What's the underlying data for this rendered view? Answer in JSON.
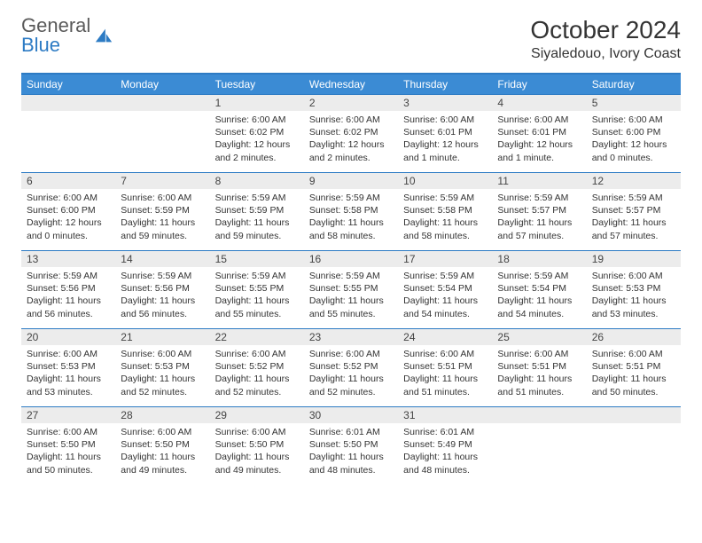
{
  "logo": {
    "part1": "General",
    "part2": "Blue"
  },
  "title": "October 2024",
  "location": "Siyaledouo, Ivory Coast",
  "colors": {
    "header_bg": "#3b8bd4",
    "header_text": "#ffffff",
    "border": "#2d7bc4",
    "daynum_bg": "#ececec",
    "text": "#333333",
    "logo_gray": "#5a5a5a",
    "logo_blue": "#2d7bc4"
  },
  "day_headers": [
    "Sunday",
    "Monday",
    "Tuesday",
    "Wednesday",
    "Thursday",
    "Friday",
    "Saturday"
  ],
  "leading_empty": 2,
  "days": [
    {
      "n": 1,
      "sr": "6:00 AM",
      "ss": "6:02 PM",
      "dl": "12 hours and 2 minutes."
    },
    {
      "n": 2,
      "sr": "6:00 AM",
      "ss": "6:02 PM",
      "dl": "12 hours and 2 minutes."
    },
    {
      "n": 3,
      "sr": "6:00 AM",
      "ss": "6:01 PM",
      "dl": "12 hours and 1 minute."
    },
    {
      "n": 4,
      "sr": "6:00 AM",
      "ss": "6:01 PM",
      "dl": "12 hours and 1 minute."
    },
    {
      "n": 5,
      "sr": "6:00 AM",
      "ss": "6:00 PM",
      "dl": "12 hours and 0 minutes."
    },
    {
      "n": 6,
      "sr": "6:00 AM",
      "ss": "6:00 PM",
      "dl": "12 hours and 0 minutes."
    },
    {
      "n": 7,
      "sr": "6:00 AM",
      "ss": "5:59 PM",
      "dl": "11 hours and 59 minutes."
    },
    {
      "n": 8,
      "sr": "5:59 AM",
      "ss": "5:59 PM",
      "dl": "11 hours and 59 minutes."
    },
    {
      "n": 9,
      "sr": "5:59 AM",
      "ss": "5:58 PM",
      "dl": "11 hours and 58 minutes."
    },
    {
      "n": 10,
      "sr": "5:59 AM",
      "ss": "5:58 PM",
      "dl": "11 hours and 58 minutes."
    },
    {
      "n": 11,
      "sr": "5:59 AM",
      "ss": "5:57 PM",
      "dl": "11 hours and 57 minutes."
    },
    {
      "n": 12,
      "sr": "5:59 AM",
      "ss": "5:57 PM",
      "dl": "11 hours and 57 minutes."
    },
    {
      "n": 13,
      "sr": "5:59 AM",
      "ss": "5:56 PM",
      "dl": "11 hours and 56 minutes."
    },
    {
      "n": 14,
      "sr": "5:59 AM",
      "ss": "5:56 PM",
      "dl": "11 hours and 56 minutes."
    },
    {
      "n": 15,
      "sr": "5:59 AM",
      "ss": "5:55 PM",
      "dl": "11 hours and 55 minutes."
    },
    {
      "n": 16,
      "sr": "5:59 AM",
      "ss": "5:55 PM",
      "dl": "11 hours and 55 minutes."
    },
    {
      "n": 17,
      "sr": "5:59 AM",
      "ss": "5:54 PM",
      "dl": "11 hours and 54 minutes."
    },
    {
      "n": 18,
      "sr": "5:59 AM",
      "ss": "5:54 PM",
      "dl": "11 hours and 54 minutes."
    },
    {
      "n": 19,
      "sr": "6:00 AM",
      "ss": "5:53 PM",
      "dl": "11 hours and 53 minutes."
    },
    {
      "n": 20,
      "sr": "6:00 AM",
      "ss": "5:53 PM",
      "dl": "11 hours and 53 minutes."
    },
    {
      "n": 21,
      "sr": "6:00 AM",
      "ss": "5:53 PM",
      "dl": "11 hours and 52 minutes."
    },
    {
      "n": 22,
      "sr": "6:00 AM",
      "ss": "5:52 PM",
      "dl": "11 hours and 52 minutes."
    },
    {
      "n": 23,
      "sr": "6:00 AM",
      "ss": "5:52 PM",
      "dl": "11 hours and 52 minutes."
    },
    {
      "n": 24,
      "sr": "6:00 AM",
      "ss": "5:51 PM",
      "dl": "11 hours and 51 minutes."
    },
    {
      "n": 25,
      "sr": "6:00 AM",
      "ss": "5:51 PM",
      "dl": "11 hours and 51 minutes."
    },
    {
      "n": 26,
      "sr": "6:00 AM",
      "ss": "5:51 PM",
      "dl": "11 hours and 50 minutes."
    },
    {
      "n": 27,
      "sr": "6:00 AM",
      "ss": "5:50 PM",
      "dl": "11 hours and 50 minutes."
    },
    {
      "n": 28,
      "sr": "6:00 AM",
      "ss": "5:50 PM",
      "dl": "11 hours and 49 minutes."
    },
    {
      "n": 29,
      "sr": "6:00 AM",
      "ss": "5:50 PM",
      "dl": "11 hours and 49 minutes."
    },
    {
      "n": 30,
      "sr": "6:01 AM",
      "ss": "5:50 PM",
      "dl": "11 hours and 48 minutes."
    },
    {
      "n": 31,
      "sr": "6:01 AM",
      "ss": "5:49 PM",
      "dl": "11 hours and 48 minutes."
    }
  ],
  "labels": {
    "sunrise": "Sunrise:",
    "sunset": "Sunset:",
    "daylight": "Daylight:"
  }
}
